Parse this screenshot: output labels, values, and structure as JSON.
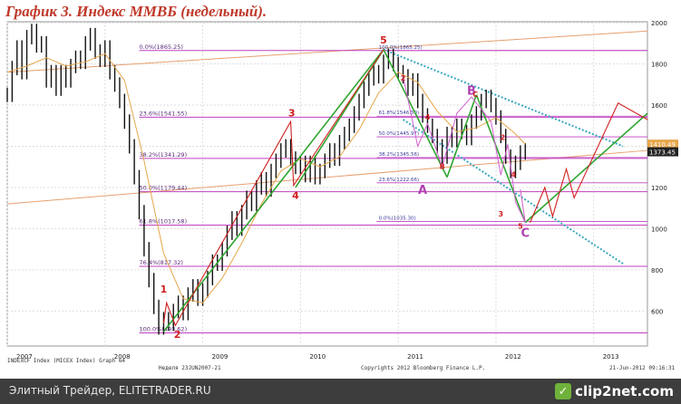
{
  "title": "График 3.    Индекс ММВБ (недельный).",
  "footer": {
    "text": "Элитный Трейдер, ELITETRADER.RU",
    "logo": "clip2net.com",
    "logo_icon": "check-icon"
  },
  "colors": {
    "title": "#c0392b",
    "fib": "#c040c0",
    "channel_green": "#2fa52f",
    "wave_red": "#d02020",
    "corrective_pink": "#d060d0",
    "dashed_cyan": "#3aa7c0",
    "trend_orange": "#e6a070",
    "ma": "#e6a64a",
    "price": "#111111"
  },
  "chart_data": {
    "type": "line",
    "title": "",
    "ylim": [
      430,
      2005
    ],
    "xlim": [
      2007.0,
      2013.55
    ],
    "y_ticks": [
      600,
      800,
      1000,
      1200,
      1400,
      1600,
      1800,
      2000
    ],
    "x_ticks": [
      {
        "x": 2007.0,
        "label": "2007"
      },
      {
        "x": 2008.0,
        "label": "2008"
      },
      {
        "x": 2009.0,
        "label": "2009"
      },
      {
        "x": 2010.0,
        "label": "2010"
      },
      {
        "x": 2011.0,
        "label": "2011"
      },
      {
        "x": 2012.0,
        "label": "2012"
      },
      {
        "x": 2013.0,
        "label": "2013"
      }
    ],
    "series": [
      {
        "type": "price",
        "points": [
          [
            2007.0,
            1650
          ],
          [
            2007.05,
            1780
          ],
          [
            2007.1,
            1880
          ],
          [
            2007.15,
            1760
          ],
          [
            2007.2,
            1930
          ],
          [
            2007.25,
            1960
          ],
          [
            2007.3,
            1890
          ],
          [
            2007.35,
            1900
          ],
          [
            2007.4,
            1720
          ],
          [
            2007.45,
            1760
          ],
          [
            2007.5,
            1680
          ],
          [
            2007.55,
            1760
          ],
          [
            2007.6,
            1720
          ],
          [
            2007.65,
            1790
          ],
          [
            2007.7,
            1830
          ],
          [
            2007.75,
            1810
          ],
          [
            2007.8,
            1900
          ],
          [
            2007.85,
            1940
          ],
          [
            2007.9,
            1860
          ],
          [
            2007.95,
            1820
          ],
          [
            2008.0,
            1880
          ],
          [
            2008.05,
            1760
          ],
          [
            2008.1,
            1700
          ],
          [
            2008.15,
            1620
          ],
          [
            2008.2,
            1520
          ],
          [
            2008.25,
            1400
          ],
          [
            2008.3,
            1250
          ],
          [
            2008.35,
            1080
          ],
          [
            2008.4,
            900
          ],
          [
            2008.45,
            750
          ],
          [
            2008.5,
            620
          ],
          [
            2008.55,
            520
          ],
          [
            2008.6,
            560
          ],
          [
            2008.65,
            540
          ],
          [
            2008.7,
            600
          ],
          [
            2008.75,
            640
          ],
          [
            2008.8,
            590
          ],
          [
            2008.85,
            680
          ],
          [
            2008.9,
            720
          ],
          [
            2008.95,
            660
          ],
          [
            2009.0,
            700
          ],
          [
            2009.05,
            760
          ],
          [
            2009.1,
            840
          ],
          [
            2009.15,
            830
          ],
          [
            2009.2,
            900
          ],
          [
            2009.25,
            980
          ],
          [
            2009.3,
            1050
          ],
          [
            2009.35,
            1000
          ],
          [
            2009.4,
            1080
          ],
          [
            2009.45,
            1150
          ],
          [
            2009.5,
            1120
          ],
          [
            2009.55,
            1200
          ],
          [
            2009.6,
            1240
          ],
          [
            2009.65,
            1190
          ],
          [
            2009.7,
            1280
          ],
          [
            2009.75,
            1330
          ],
          [
            2009.8,
            1380
          ],
          [
            2009.85,
            1400
          ],
          [
            2009.9,
            1340
          ],
          [
            2009.95,
            1300
          ],
          [
            2010.0,
            1320
          ],
          [
            2010.05,
            1260
          ],
          [
            2010.1,
            1320
          ],
          [
            2010.15,
            1250
          ],
          [
            2010.2,
            1280
          ],
          [
            2010.25,
            1330
          ],
          [
            2010.3,
            1380
          ],
          [
            2010.35,
            1340
          ],
          [
            2010.4,
            1420
          ],
          [
            2010.45,
            1460
          ],
          [
            2010.5,
            1500
          ],
          [
            2010.55,
            1560
          ],
          [
            2010.6,
            1620
          ],
          [
            2010.65,
            1680
          ],
          [
            2010.7,
            1730
          ],
          [
            2010.75,
            1760
          ],
          [
            2010.8,
            1740
          ],
          [
            2010.85,
            1810
          ],
          [
            2010.9,
            1840
          ],
          [
            2010.95,
            1800
          ],
          [
            2011.0,
            1760
          ],
          [
            2011.05,
            1740
          ],
          [
            2011.1,
            1680
          ],
          [
            2011.15,
            1720
          ],
          [
            2011.2,
            1620
          ],
          [
            2011.25,
            1550
          ],
          [
            2011.3,
            1500
          ],
          [
            2011.35,
            1450
          ],
          [
            2011.4,
            1400
          ],
          [
            2011.45,
            1350
          ],
          [
            2011.5,
            1460
          ],
          [
            2011.55,
            1430
          ],
          [
            2011.6,
            1500
          ],
          [
            2011.65,
            1470
          ],
          [
            2011.7,
            1440
          ],
          [
            2011.75,
            1520
          ],
          [
            2011.8,
            1560
          ],
          [
            2011.85,
            1620
          ],
          [
            2011.9,
            1640
          ],
          [
            2011.95,
            1600
          ],
          [
            2012.0,
            1540
          ],
          [
            2012.05,
            1450
          ],
          [
            2012.1,
            1350
          ],
          [
            2012.15,
            1280
          ],
          [
            2012.2,
            1320
          ],
          [
            2012.25,
            1370
          ],
          [
            2012.3,
            1380
          ]
        ]
      },
      {
        "type": "moving_average",
        "points": [
          [
            2007.0,
            1760
          ],
          [
            2007.2,
            1790
          ],
          [
            2007.4,
            1830
          ],
          [
            2007.6,
            1790
          ],
          [
            2007.8,
            1810
          ],
          [
            2008.0,
            1850
          ],
          [
            2008.2,
            1720
          ],
          [
            2008.4,
            1330
          ],
          [
            2008.6,
            880
          ],
          [
            2008.8,
            660
          ],
          [
            2009.0,
            640
          ],
          [
            2009.2,
            760
          ],
          [
            2009.4,
            930
          ],
          [
            2009.6,
            1120
          ],
          [
            2009.8,
            1280
          ],
          [
            2010.0,
            1340
          ],
          [
            2010.2,
            1300
          ],
          [
            2010.4,
            1350
          ],
          [
            2010.6,
            1480
          ],
          [
            2010.8,
            1660
          ],
          [
            2011.0,
            1760
          ],
          [
            2011.2,
            1710
          ],
          [
            2011.4,
            1570
          ],
          [
            2011.6,
            1470
          ],
          [
            2011.8,
            1490
          ],
          [
            2012.0,
            1540
          ],
          [
            2012.2,
            1460
          ],
          [
            2012.3,
            1410
          ]
        ]
      }
    ],
    "fib_levels": [
      {
        "label": "0.0%(1865.25)",
        "value": 1865.25
      },
      {
        "label": "23.6%(1541.55)",
        "value": 1541.55
      },
      {
        "label": "38.2%(1341.29)",
        "value": 1341.29
      },
      {
        "label": "50.0%(1179.44)",
        "value": 1179.44
      },
      {
        "label": "61.8%(1017.58)",
        "value": 1017.58
      },
      {
        "label": "76.4%(817.32)",
        "value": 817.32
      },
      {
        "label": "100.0%(493.62)",
        "value": 493.62
      }
    ],
    "fib_levels_small": [
      {
        "label": "100.0%(1865.25)",
        "value": 1865.25
      },
      {
        "label": "61.8%(1546.50)",
        "value": 1546.5
      },
      {
        "label": "50.0%(1445.97)",
        "value": 1445.97
      },
      {
        "label": "38.2%(1345.56)",
        "value": 1345.56
      },
      {
        "label": "23.6%(1222.66)",
        "value": 1222.66
      },
      {
        "label": "0.0%(1035.30)",
        "value": 1035.3
      }
    ],
    "last_prices": [
      {
        "label": "1410.49",
        "value": 1410.49,
        "color": "#e6a64a"
      },
      {
        "label": "1373.45",
        "value": 1373.45,
        "color": "#222222"
      }
    ],
    "wave_labels": [
      {
        "text": "1",
        "x": 2008.6,
        "y": 690,
        "color": "#d02020",
        "size": 11
      },
      {
        "text": "2",
        "x": 2008.74,
        "y": 470,
        "color": "#d02020",
        "size": 11
      },
      {
        "text": "3",
        "x": 2009.91,
        "y": 1545,
        "color": "#d02020",
        "size": 11
      },
      {
        "text": "4",
        "x": 2009.95,
        "y": 1145,
        "color": "#d02020",
        "size": 11
      },
      {
        "text": "5",
        "x": 2010.85,
        "y": 1900,
        "color": "#d02020",
        "size": 11
      },
      {
        "text": "A",
        "x": 2011.25,
        "y": 1170,
        "color": "#b040b0",
        "size": 13
      },
      {
        "text": "B",
        "x": 2011.75,
        "y": 1650,
        "color": "#b040b0",
        "size": 13
      },
      {
        "text": "C",
        "x": 2012.3,
        "y": 960,
        "color": "#b040b0",
        "size": 13
      },
      {
        "text": "2",
        "x": 2011.05,
        "y": 1720,
        "color": "#d02020",
        "size": 8
      },
      {
        "text": "4",
        "x": 2011.3,
        "y": 1530,
        "color": "#d02020",
        "size": 8
      },
      {
        "text": "B",
        "x": 2011.45,
        "y": 1290,
        "color": "#d02020",
        "size": 8
      },
      {
        "text": "C",
        "x": 2011.79,
        "y": 1640,
        "color": "#d02020",
        "size": 8
      },
      {
        "text": "2",
        "x": 2012.07,
        "y": 1430,
        "color": "#d02020",
        "size": 8
      },
      {
        "text": "4",
        "x": 2012.18,
        "y": 1250,
        "color": "#d02020",
        "size": 8
      },
      {
        "text": "3",
        "x": 2012.05,
        "y": 1060,
        "color": "#d02020",
        "size": 8
      },
      {
        "text": "5",
        "x": 2012.25,
        "y": 1000,
        "color": "#d02020",
        "size": 8
      }
    ],
    "footer_left": "INDEXCF Index (MICEX Index) Graph 64",
    "footer_mid": "Неделя 23JUN2007-21",
    "footer_copyright": "Copyrights 2012 Bloomberg Finance L.P.",
    "footer_date": "21-Jun-2012 09:16:31",
    "grid": true
  }
}
